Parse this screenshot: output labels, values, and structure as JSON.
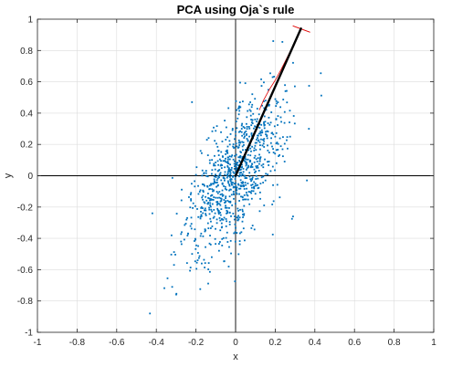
{
  "chart_data": {
    "type": "scatter",
    "title": "PCA using Oja`s rule",
    "xlabel": "x",
    "ylabel": "y",
    "xlim": [
      -1,
      1
    ],
    "ylim": [
      -1,
      1
    ],
    "xticks": [
      -1,
      -0.8,
      -0.6,
      -0.4,
      -0.2,
      0,
      0.2,
      0.4,
      0.6,
      0.8,
      1
    ],
    "yticks": [
      -1,
      -0.8,
      -0.6,
      -0.4,
      -0.2,
      0,
      0.2,
      0.4,
      0.6,
      0.8,
      1
    ],
    "grid": true,
    "colors": {
      "points": "#0072BD",
      "vector": "#000000",
      "trajectory": "#E00000",
      "grid": "#dcdcdc",
      "axes": "#000000"
    },
    "scatter_cloud": {
      "description_free": true,
      "n_points": 900,
      "mean": [
        0.0,
        0.0
      ],
      "principal_direction": [
        0.34,
        0.93
      ],
      "std_major": 0.28,
      "std_minor": 0.09
    },
    "outliers": [
      {
        "x": 0.19,
        "y": 0.86
      },
      {
        "x": -0.22,
        "y": 0.47
      },
      {
        "x": 0.37,
        "y": 0.3
      },
      {
        "x": 0.36,
        "y": -0.03
      },
      {
        "x": 0.29,
        "y": -0.26
      },
      {
        "x": -0.42,
        "y": -0.24
      },
      {
        "x": -0.32,
        "y": -0.71
      }
    ],
    "principal_vector": {
      "from": [
        0,
        0
      ],
      "to": [
        0.33,
        0.94
      ]
    },
    "learning_trajectory": {
      "x": [
        0.12,
        0.14,
        0.17,
        0.2,
        0.23,
        0.25,
        0.27,
        0.29,
        0.31,
        0.33,
        0.33
      ],
      "y": [
        0.42,
        0.48,
        0.55,
        0.61,
        0.68,
        0.73,
        0.78,
        0.83,
        0.88,
        0.93,
        0.94
      ]
    }
  }
}
